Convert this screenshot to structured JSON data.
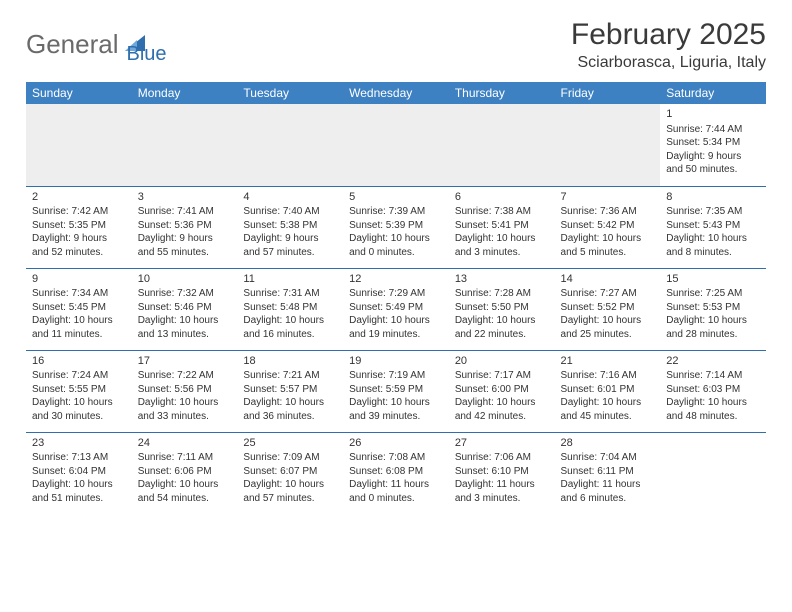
{
  "logo": {
    "text1": "General",
    "text2": "Blue"
  },
  "title": "February 2025",
  "location": "Sciarborasca, Liguria, Italy",
  "colors": {
    "header_bg": "#3d81c2",
    "header_text": "#ffffff",
    "rule": "#2f6fae",
    "logo_gray": "#6a6a6a",
    "logo_blue": "#2f6fae",
    "body_text": "#333333",
    "filler_bg": "#eeeeee"
  },
  "weekdays": [
    "Sunday",
    "Monday",
    "Tuesday",
    "Wednesday",
    "Thursday",
    "Friday",
    "Saturday"
  ],
  "weeks": [
    [
      null,
      null,
      null,
      null,
      null,
      null,
      {
        "n": "1",
        "sr": "Sunrise: 7:44 AM",
        "ss": "Sunset: 5:34 PM",
        "dl1": "Daylight: 9 hours",
        "dl2": "and 50 minutes."
      }
    ],
    [
      {
        "n": "2",
        "sr": "Sunrise: 7:42 AM",
        "ss": "Sunset: 5:35 PM",
        "dl1": "Daylight: 9 hours",
        "dl2": "and 52 minutes."
      },
      {
        "n": "3",
        "sr": "Sunrise: 7:41 AM",
        "ss": "Sunset: 5:36 PM",
        "dl1": "Daylight: 9 hours",
        "dl2": "and 55 minutes."
      },
      {
        "n": "4",
        "sr": "Sunrise: 7:40 AM",
        "ss": "Sunset: 5:38 PM",
        "dl1": "Daylight: 9 hours",
        "dl2": "and 57 minutes."
      },
      {
        "n": "5",
        "sr": "Sunrise: 7:39 AM",
        "ss": "Sunset: 5:39 PM",
        "dl1": "Daylight: 10 hours",
        "dl2": "and 0 minutes."
      },
      {
        "n": "6",
        "sr": "Sunrise: 7:38 AM",
        "ss": "Sunset: 5:41 PM",
        "dl1": "Daylight: 10 hours",
        "dl2": "and 3 minutes."
      },
      {
        "n": "7",
        "sr": "Sunrise: 7:36 AM",
        "ss": "Sunset: 5:42 PM",
        "dl1": "Daylight: 10 hours",
        "dl2": "and 5 minutes."
      },
      {
        "n": "8",
        "sr": "Sunrise: 7:35 AM",
        "ss": "Sunset: 5:43 PM",
        "dl1": "Daylight: 10 hours",
        "dl2": "and 8 minutes."
      }
    ],
    [
      {
        "n": "9",
        "sr": "Sunrise: 7:34 AM",
        "ss": "Sunset: 5:45 PM",
        "dl1": "Daylight: 10 hours",
        "dl2": "and 11 minutes."
      },
      {
        "n": "10",
        "sr": "Sunrise: 7:32 AM",
        "ss": "Sunset: 5:46 PM",
        "dl1": "Daylight: 10 hours",
        "dl2": "and 13 minutes."
      },
      {
        "n": "11",
        "sr": "Sunrise: 7:31 AM",
        "ss": "Sunset: 5:48 PM",
        "dl1": "Daylight: 10 hours",
        "dl2": "and 16 minutes."
      },
      {
        "n": "12",
        "sr": "Sunrise: 7:29 AM",
        "ss": "Sunset: 5:49 PM",
        "dl1": "Daylight: 10 hours",
        "dl2": "and 19 minutes."
      },
      {
        "n": "13",
        "sr": "Sunrise: 7:28 AM",
        "ss": "Sunset: 5:50 PM",
        "dl1": "Daylight: 10 hours",
        "dl2": "and 22 minutes."
      },
      {
        "n": "14",
        "sr": "Sunrise: 7:27 AM",
        "ss": "Sunset: 5:52 PM",
        "dl1": "Daylight: 10 hours",
        "dl2": "and 25 minutes."
      },
      {
        "n": "15",
        "sr": "Sunrise: 7:25 AM",
        "ss": "Sunset: 5:53 PM",
        "dl1": "Daylight: 10 hours",
        "dl2": "and 28 minutes."
      }
    ],
    [
      {
        "n": "16",
        "sr": "Sunrise: 7:24 AM",
        "ss": "Sunset: 5:55 PM",
        "dl1": "Daylight: 10 hours",
        "dl2": "and 30 minutes."
      },
      {
        "n": "17",
        "sr": "Sunrise: 7:22 AM",
        "ss": "Sunset: 5:56 PM",
        "dl1": "Daylight: 10 hours",
        "dl2": "and 33 minutes."
      },
      {
        "n": "18",
        "sr": "Sunrise: 7:21 AM",
        "ss": "Sunset: 5:57 PM",
        "dl1": "Daylight: 10 hours",
        "dl2": "and 36 minutes."
      },
      {
        "n": "19",
        "sr": "Sunrise: 7:19 AM",
        "ss": "Sunset: 5:59 PM",
        "dl1": "Daylight: 10 hours",
        "dl2": "and 39 minutes."
      },
      {
        "n": "20",
        "sr": "Sunrise: 7:17 AM",
        "ss": "Sunset: 6:00 PM",
        "dl1": "Daylight: 10 hours",
        "dl2": "and 42 minutes."
      },
      {
        "n": "21",
        "sr": "Sunrise: 7:16 AM",
        "ss": "Sunset: 6:01 PM",
        "dl1": "Daylight: 10 hours",
        "dl2": "and 45 minutes."
      },
      {
        "n": "22",
        "sr": "Sunrise: 7:14 AM",
        "ss": "Sunset: 6:03 PM",
        "dl1": "Daylight: 10 hours",
        "dl2": "and 48 minutes."
      }
    ],
    [
      {
        "n": "23",
        "sr": "Sunrise: 7:13 AM",
        "ss": "Sunset: 6:04 PM",
        "dl1": "Daylight: 10 hours",
        "dl2": "and 51 minutes."
      },
      {
        "n": "24",
        "sr": "Sunrise: 7:11 AM",
        "ss": "Sunset: 6:06 PM",
        "dl1": "Daylight: 10 hours",
        "dl2": "and 54 minutes."
      },
      {
        "n": "25",
        "sr": "Sunrise: 7:09 AM",
        "ss": "Sunset: 6:07 PM",
        "dl1": "Daylight: 10 hours",
        "dl2": "and 57 minutes."
      },
      {
        "n": "26",
        "sr": "Sunrise: 7:08 AM",
        "ss": "Sunset: 6:08 PM",
        "dl1": "Daylight: 11 hours",
        "dl2": "and 0 minutes."
      },
      {
        "n": "27",
        "sr": "Sunrise: 7:06 AM",
        "ss": "Sunset: 6:10 PM",
        "dl1": "Daylight: 11 hours",
        "dl2": "and 3 minutes."
      },
      {
        "n": "28",
        "sr": "Sunrise: 7:04 AM",
        "ss": "Sunset: 6:11 PM",
        "dl1": "Daylight: 11 hours",
        "dl2": "and 6 minutes."
      },
      null
    ]
  ]
}
